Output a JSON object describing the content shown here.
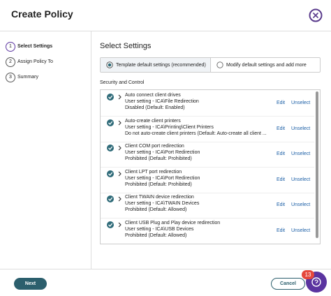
{
  "header": {
    "title": "Create Policy"
  },
  "steps": [
    {
      "number": 1,
      "label": "Select Settings"
    },
    {
      "number": 2,
      "label": "Assign Policy To"
    },
    {
      "number": 3,
      "label": "Summary"
    }
  ],
  "main": {
    "title": "Select Settings",
    "options": [
      "Template default settings (recommended)",
      "Modify default settings and add more"
    ],
    "section_label": "Security and Control",
    "items": [
      {
        "title": "Auto connect client drives",
        "lines": [
          "User setting - ICA\\File Redirection",
          "Disabled (Default: Enabled)"
        ],
        "edit": "Edit",
        "unselect": "Unselect"
      },
      {
        "title": "Auto-create client printers",
        "lines": [
          "User setting - ICA\\Printing\\Client Printers",
          "Do not auto-create client printers (Default: Auto-create all client ..."
        ],
        "edit": "Edit",
        "unselect": "Unselect"
      },
      {
        "title": "Client COM port redirection",
        "lines": [
          "User setting - ICA\\Port Redirection",
          "Prohibited (Default: Prohibited)"
        ],
        "edit": "Edit",
        "unselect": "Unselect"
      },
      {
        "title": "Client LPT port redirection",
        "lines": [
          "User setting - ICA\\Port Redirection",
          "Prohibited (Default: Prohibited)"
        ],
        "edit": "Edit",
        "unselect": "Unselect"
      },
      {
        "title": "Client TWAIN device redirection",
        "lines": [
          "User setting - ICA\\TWAIN Devices",
          "Prohibited (Default: Allowed)"
        ],
        "edit": "Edit",
        "unselect": "Unselect"
      },
      {
        "title": "Client USB Plug and Play device redirection",
        "lines": [
          "User setting - ICA\\USB Devices",
          "Prohibited (Default: Allowed)"
        ],
        "edit": "Edit",
        "unselect": "Unselect"
      }
    ]
  },
  "footer": {
    "next": "Next",
    "cancel": "Cancel",
    "badge": 13
  }
}
